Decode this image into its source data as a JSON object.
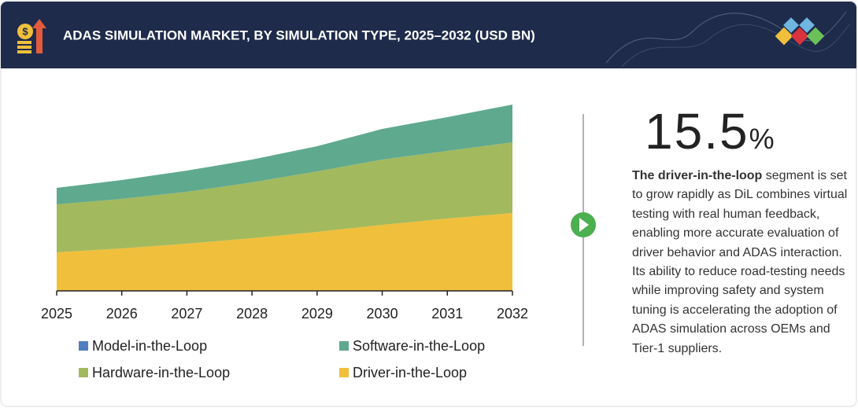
{
  "chart_data": {
    "type": "area",
    "stacked": true,
    "title": "ADAS SIMULATION MARKET, BY SIMULATION TYPE, 2025–2032 (USD BN)",
    "categories": [
      "2025",
      "2026",
      "2027",
      "2028",
      "2029",
      "2030",
      "2031",
      "2032"
    ],
    "ylim": [
      0,
      2.4
    ],
    "series": [
      {
        "name": "Driver-in-the-Loop",
        "color": "#f0bf3c",
        "values": [
          0.49,
          0.54,
          0.6,
          0.67,
          0.75,
          0.84,
          0.92,
          0.99
        ]
      },
      {
        "name": "Hardware-in-the-Loop",
        "color": "#a3b95e",
        "values": [
          0.61,
          0.63,
          0.66,
          0.71,
          0.77,
          0.83,
          0.86,
          0.9
        ]
      },
      {
        "name": "Software-in-the-Loop",
        "color": "#5fa98f",
        "values": [
          0.21,
          0.24,
          0.27,
          0.29,
          0.32,
          0.39,
          0.43,
          0.48
        ]
      },
      {
        "name": "Model-in-the-Loop",
        "color": "#4f7fbf",
        "values": [
          0,
          0,
          0,
          0,
          0,
          0,
          0,
          0
        ]
      }
    ],
    "legend_order": [
      3,
      2,
      1,
      0
    ]
  },
  "callout": {
    "value": 15.5,
    "unit": "%",
    "lead": "The driver-in-the-loop",
    "text": "segment is set to grow rapidly as DiL combines virtual testing with real human feedback, enabling more accurate evaluation of driver behavior and ADAS interaction. Its ability to reduce road-testing needs while improving safety and system tuning is accelerating the adoption of ADAS simulation across OEMs and Tier-1 suppliers."
  }
}
